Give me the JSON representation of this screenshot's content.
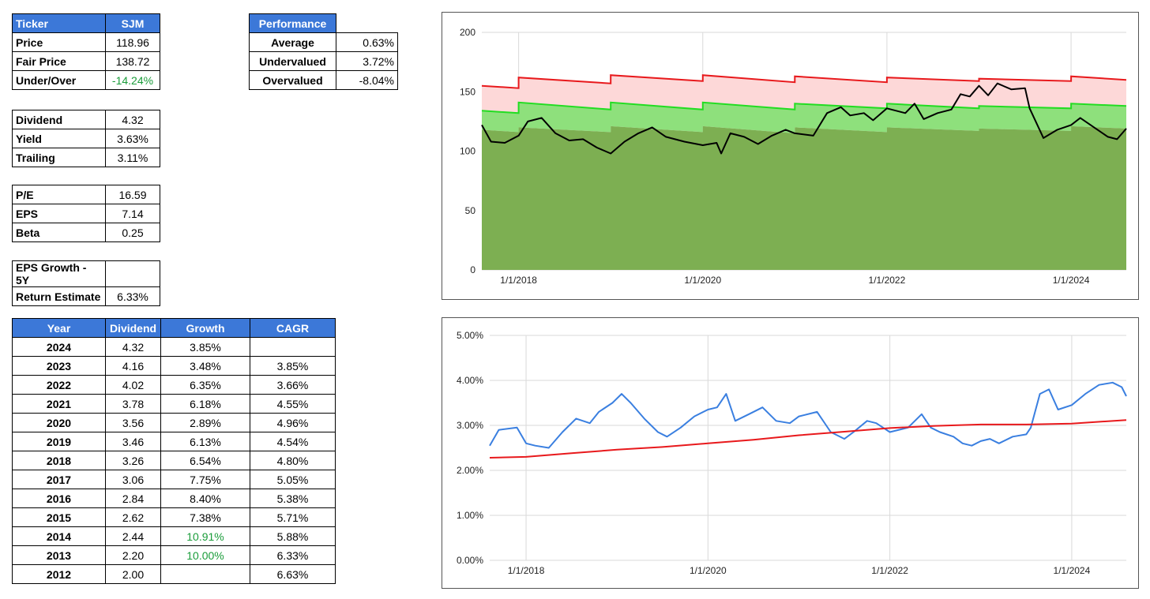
{
  "summary": {
    "ticker_label": "Ticker",
    "ticker": "SJM",
    "rows": [
      {
        "label": "Price",
        "value": "118.96"
      },
      {
        "label": "Fair Price",
        "value": "138.72"
      },
      {
        "label": "Under/Over",
        "value": "-14.24%"
      }
    ]
  },
  "dividend_box": [
    {
      "label": "Dividend",
      "value": "4.32"
    },
    {
      "label": "Yield",
      "value": "3.63%"
    },
    {
      "label": "Trailing",
      "value": "3.11%"
    }
  ],
  "valuation_box": [
    {
      "label": "P/E",
      "value": "16.59"
    },
    {
      "label": "EPS",
      "value": "7.14"
    },
    {
      "label": "Beta",
      "value": "0.25"
    }
  ],
  "growth_box": [
    {
      "label": "EPS Growth - 5Y",
      "value": ""
    },
    {
      "label": "Return Estimate",
      "value": "6.33%"
    }
  ],
  "performance": {
    "header": "Performance",
    "rows": [
      {
        "label": "Average",
        "value": "0.63%"
      },
      {
        "label": "Undervalued",
        "value": "3.72%"
      },
      {
        "label": "Overvalued",
        "value": "-8.04%"
      }
    ]
  },
  "history": {
    "headers": [
      "Year",
      "Dividend",
      "Growth",
      "CAGR"
    ],
    "rows": [
      [
        "2024",
        "4.32",
        "3.85%",
        ""
      ],
      [
        "2023",
        "4.16",
        "3.48%",
        "3.85%"
      ],
      [
        "2022",
        "4.02",
        "6.35%",
        "3.66%"
      ],
      [
        "2021",
        "3.78",
        "6.18%",
        "4.55%"
      ],
      [
        "2020",
        "3.56",
        "2.89%",
        "4.96%"
      ],
      [
        "2019",
        "3.46",
        "6.13%",
        "4.54%"
      ],
      [
        "2018",
        "3.26",
        "6.54%",
        "4.80%"
      ],
      [
        "2017",
        "3.06",
        "7.75%",
        "5.05%"
      ],
      [
        "2016",
        "2.84",
        "8.40%",
        "5.38%"
      ],
      [
        "2015",
        "2.62",
        "7.38%",
        "5.71%"
      ],
      [
        "2014",
        "2.44",
        "10.91%",
        "5.88%"
      ],
      [
        "2013",
        "2.20",
        "10.00%",
        "6.33%"
      ],
      [
        "2012",
        "2.00",
        "",
        "6.63%"
      ]
    ],
    "green_growth_rows": [
      10,
      11
    ]
  },
  "colors": {
    "header_blue": "#3c78d8",
    "positive_green": "#1a9c3a",
    "overvalued_band": "#fdd8d8",
    "fair_band": "#8ee07c",
    "undervalued_area": "#7daf52",
    "upper_line": "#e8191c",
    "fair_line": "#22dd22",
    "price_line": "#000000",
    "yield_line": "#3a7fe0",
    "avg_yield_line": "#e8191c"
  },
  "chart_data": [
    {
      "type": "area",
      "x_ticks": [
        "1/1/2018",
        "1/1/2020",
        "1/1/2022",
        "1/1/2024"
      ],
      "x_range": [
        "2017-08-01",
        "2024-08-15"
      ],
      "ylim": [
        0,
        200
      ],
      "y_ticks": [
        0,
        50,
        100,
        150,
        200
      ],
      "grid": true,
      "series": [
        {
          "role": "upper_value",
          "points": [
            [
              2017.6,
              155
            ],
            [
              2018.0,
              153
            ],
            [
              2018.0,
              162
            ],
            [
              2019.0,
              157
            ],
            [
              2019.0,
              164
            ],
            [
              2020.0,
              159
            ],
            [
              2020.0,
              164
            ],
            [
              2021.0,
              158
            ],
            [
              2021.0,
              163
            ],
            [
              2022.0,
              158
            ],
            [
              2022.0,
              162
            ],
            [
              2023.0,
              159
            ],
            [
              2023.0,
              161
            ],
            [
              2024.0,
              159
            ],
            [
              2024.0,
              163
            ],
            [
              2024.6,
              160
            ]
          ]
        },
        {
          "role": "fair_value",
          "points": [
            [
              2017.6,
              134
            ],
            [
              2018.0,
              132
            ],
            [
              2018.0,
              141
            ],
            [
              2019.0,
              135
            ],
            [
              2019.0,
              141
            ],
            [
              2020.0,
              135
            ],
            [
              2020.0,
              141
            ],
            [
              2021.0,
              135
            ],
            [
              2021.0,
              140
            ],
            [
              2022.0,
              136
            ],
            [
              2022.0,
              140
            ],
            [
              2023.0,
              136
            ],
            [
              2023.0,
              138
            ],
            [
              2024.0,
              136
            ],
            [
              2024.0,
              140
            ],
            [
              2024.6,
              138
            ]
          ]
        },
        {
          "role": "undervalued_value",
          "points": [
            [
              2017.6,
              118
            ],
            [
              2018.0,
              116
            ],
            [
              2018.0,
              120
            ],
            [
              2019.0,
              116
            ],
            [
              2019.0,
              121
            ],
            [
              2020.0,
              116
            ],
            [
              2020.0,
              121
            ],
            [
              2021.0,
              115
            ],
            [
              2021.0,
              120
            ],
            [
              2022.0,
              116
            ],
            [
              2022.0,
              120
            ],
            [
              2023.0,
              117
            ],
            [
              2023.0,
              119
            ],
            [
              2024.0,
              117
            ],
            [
              2024.0,
              121
            ],
            [
              2024.6,
              119
            ]
          ]
        },
        {
          "role": "price",
          "points": [
            [
              2017.6,
              122
            ],
            [
              2017.7,
              108
            ],
            [
              2017.85,
              107
            ],
            [
              2018.0,
              113
            ],
            [
              2018.1,
              125
            ],
            [
              2018.25,
              128
            ],
            [
              2018.4,
              115
            ],
            [
              2018.55,
              109
            ],
            [
              2018.7,
              110
            ],
            [
              2018.85,
              103
            ],
            [
              2019.0,
              98
            ],
            [
              2019.15,
              108
            ],
            [
              2019.3,
              115
            ],
            [
              2019.45,
              120
            ],
            [
              2019.6,
              112
            ],
            [
              2019.8,
              108
            ],
            [
              2020.0,
              105
            ],
            [
              2020.15,
              107
            ],
            [
              2020.2,
              98
            ],
            [
              2020.3,
              115
            ],
            [
              2020.45,
              112
            ],
            [
              2020.6,
              106
            ],
            [
              2020.75,
              113
            ],
            [
              2020.9,
              118
            ],
            [
              2021.0,
              115
            ],
            [
              2021.2,
              113
            ],
            [
              2021.35,
              132
            ],
            [
              2021.5,
              137
            ],
            [
              2021.6,
              130
            ],
            [
              2021.75,
              132
            ],
            [
              2021.85,
              126
            ],
            [
              2022.0,
              136
            ],
            [
              2022.2,
              132
            ],
            [
              2022.3,
              140
            ],
            [
              2022.4,
              127
            ],
            [
              2022.55,
              132
            ],
            [
              2022.7,
              135
            ],
            [
              2022.8,
              148
            ],
            [
              2022.9,
              146
            ],
            [
              2023.0,
              155
            ],
            [
              2023.1,
              147
            ],
            [
              2023.2,
              157
            ],
            [
              2023.35,
              152
            ],
            [
              2023.5,
              153
            ],
            [
              2023.55,
              136
            ],
            [
              2023.7,
              111
            ],
            [
              2023.85,
              118
            ],
            [
              2024.0,
              122
            ],
            [
              2024.1,
              128
            ],
            [
              2024.25,
              120
            ],
            [
              2024.4,
              112
            ],
            [
              2024.5,
              110
            ],
            [
              2024.6,
              119
            ]
          ]
        }
      ]
    },
    {
      "type": "line",
      "x_ticks": [
        "1/1/2018",
        "1/1/2020",
        "1/1/2022",
        "1/1/2024"
      ],
      "x_range": [
        "2017-08-01",
        "2024-08-15"
      ],
      "ylim": [
        0,
        5
      ],
      "y_ticks": [
        "0.00%",
        "1.00%",
        "2.00%",
        "3.00%",
        "4.00%",
        "5.00%"
      ],
      "grid": true,
      "series": [
        {
          "role": "dividend_yield",
          "points": [
            [
              2017.6,
              2.55
            ],
            [
              2017.7,
              2.9
            ],
            [
              2017.9,
              2.95
            ],
            [
              2018.0,
              2.6
            ],
            [
              2018.1,
              2.55
            ],
            [
              2018.25,
              2.5
            ],
            [
              2018.4,
              2.85
            ],
            [
              2018.55,
              3.15
            ],
            [
              2018.7,
              3.05
            ],
            [
              2018.8,
              3.3
            ],
            [
              2018.95,
              3.5
            ],
            [
              2019.05,
              3.7
            ],
            [
              2019.15,
              3.5
            ],
            [
              2019.3,
              3.15
            ],
            [
              2019.45,
              2.85
            ],
            [
              2019.55,
              2.75
            ],
            [
              2019.7,
              2.95
            ],
            [
              2019.85,
              3.2
            ],
            [
              2020.0,
              3.35
            ],
            [
              2020.1,
              3.4
            ],
            [
              2020.2,
              3.7
            ],
            [
              2020.3,
              3.1
            ],
            [
              2020.45,
              3.25
            ],
            [
              2020.6,
              3.4
            ],
            [
              2020.75,
              3.1
            ],
            [
              2020.9,
              3.05
            ],
            [
              2021.0,
              3.2
            ],
            [
              2021.2,
              3.3
            ],
            [
              2021.35,
              2.85
            ],
            [
              2021.5,
              2.7
            ],
            [
              2021.6,
              2.85
            ],
            [
              2021.75,
              3.1
            ],
            [
              2021.85,
              3.05
            ],
            [
              2022.0,
              2.85
            ],
            [
              2022.2,
              2.95
            ],
            [
              2022.35,
              3.25
            ],
            [
              2022.45,
              2.95
            ],
            [
              2022.55,
              2.85
            ],
            [
              2022.7,
              2.75
            ],
            [
              2022.8,
              2.6
            ],
            [
              2022.9,
              2.55
            ],
            [
              2023.0,
              2.65
            ],
            [
              2023.1,
              2.7
            ],
            [
              2023.2,
              2.6
            ],
            [
              2023.35,
              2.75
            ],
            [
              2023.5,
              2.8
            ],
            [
              2023.55,
              2.95
            ],
            [
              2023.65,
              3.7
            ],
            [
              2023.75,
              3.8
            ],
            [
              2023.85,
              3.35
            ],
            [
              2024.0,
              3.45
            ],
            [
              2024.15,
              3.7
            ],
            [
              2024.3,
              3.9
            ],
            [
              2024.45,
              3.95
            ],
            [
              2024.55,
              3.85
            ],
            [
              2024.6,
              3.65
            ]
          ]
        },
        {
          "role": "average_yield",
          "points": [
            [
              2017.6,
              2.28
            ],
            [
              2018.0,
              2.3
            ],
            [
              2018.5,
              2.38
            ],
            [
              2019.0,
              2.46
            ],
            [
              2019.5,
              2.52
            ],
            [
              2020.0,
              2.6
            ],
            [
              2020.5,
              2.68
            ],
            [
              2021.0,
              2.78
            ],
            [
              2021.5,
              2.86
            ],
            [
              2022.0,
              2.94
            ],
            [
              2022.5,
              2.99
            ],
            [
              2023.0,
              3.02
            ],
            [
              2023.5,
              3.02
            ],
            [
              2024.0,
              3.04
            ],
            [
              2024.6,
              3.12
            ]
          ]
        }
      ]
    }
  ]
}
